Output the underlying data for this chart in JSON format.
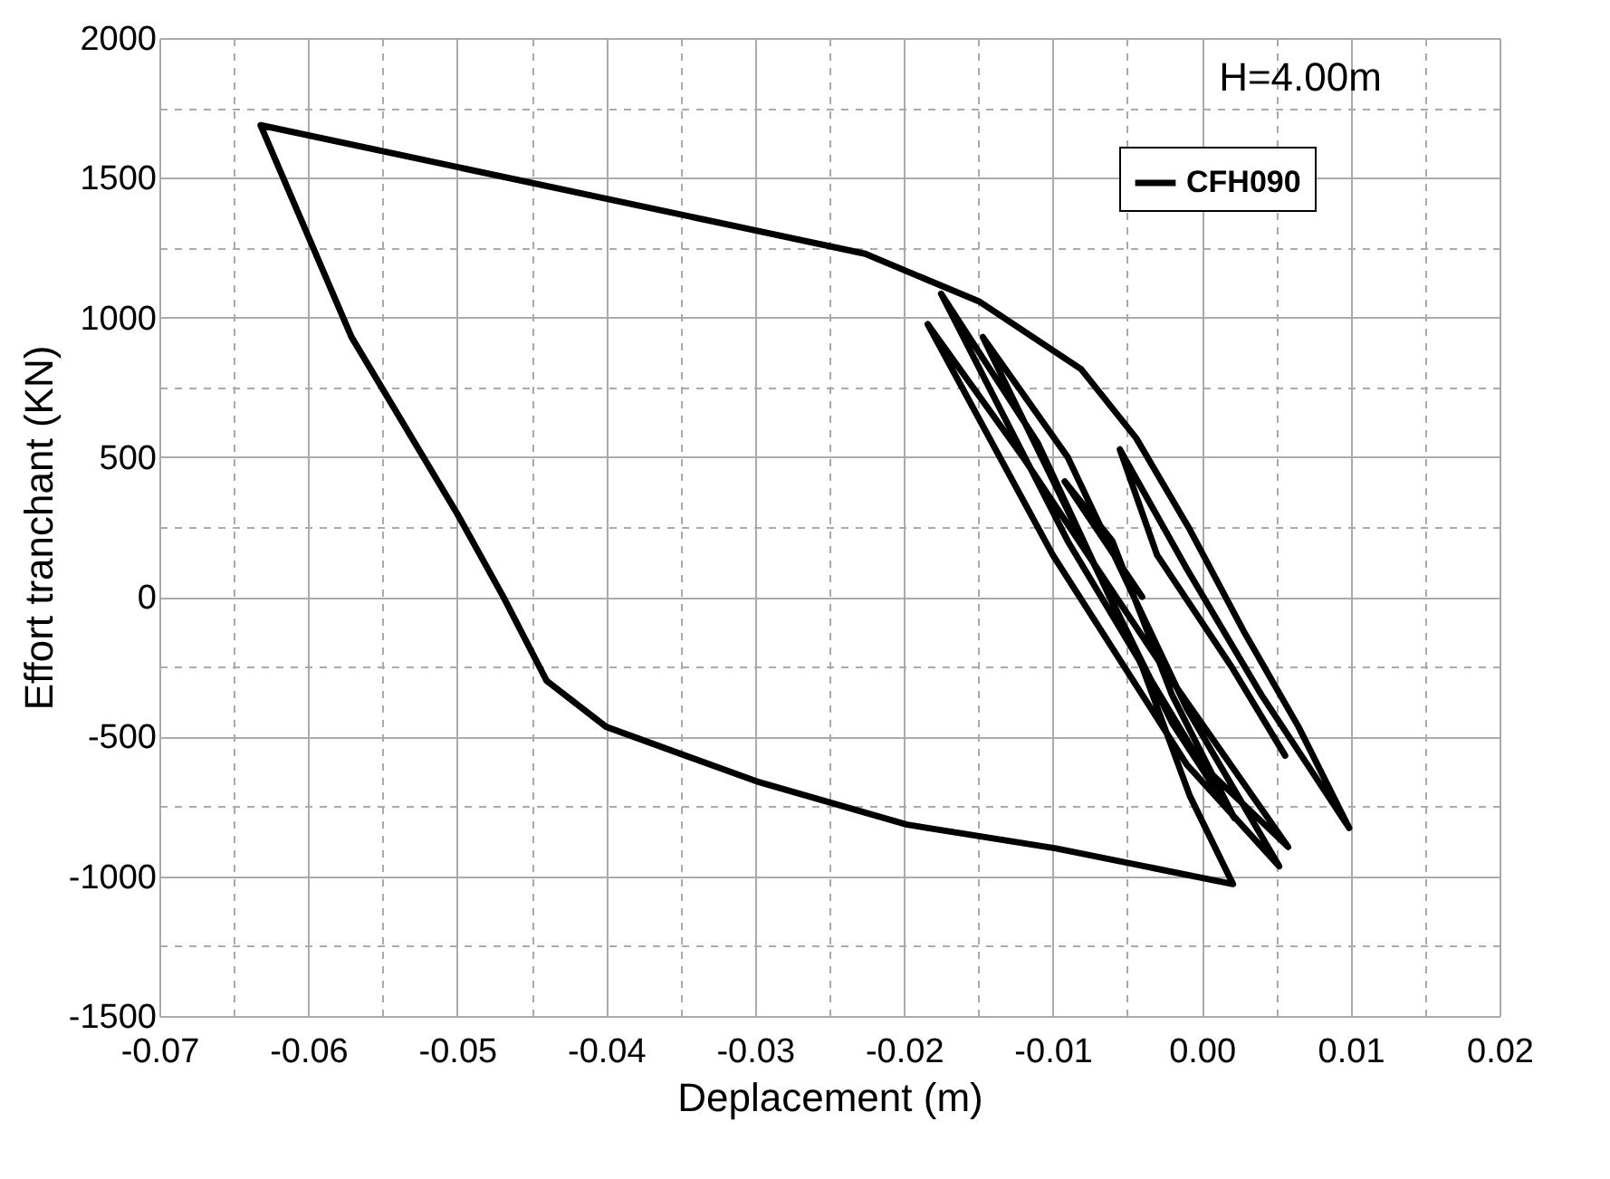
{
  "chart_data": {
    "type": "line",
    "xlabel": "Deplacement (m)",
    "ylabel": "Effort tranchant (KN)",
    "annotations": [
      "H=4.00m"
    ],
    "x": [
      -0.004,
      -0.0092,
      -0.006,
      -0.002,
      0.0022,
      -0.002,
      -0.008,
      -0.0147,
      -0.009,
      -0.001,
      0.0052,
      -0.001,
      -0.01,
      -0.0184,
      -0.012,
      -0.002,
      0.0058,
      0.0,
      -0.009,
      -0.0175,
      -0.011,
      -0.004,
      -0.0008,
      0.0021,
      -0.0098,
      -0.0198,
      -0.0299,
      -0.04,
      -0.044,
      -0.0469,
      -0.05,
      -0.0571,
      -0.0632,
      -0.0226,
      -0.0149,
      -0.0081,
      -0.0044,
      -0.0008,
      0.0028,
      0.0065,
      0.0099,
      0.004,
      -0.001,
      -0.0055,
      -0.003,
      0.002,
      0.0056
    ],
    "series": [
      {
        "name": "CFH090",
        "color": "#000000",
        "values": [
          0,
          413,
          200,
          -350,
          -792,
          -450,
          200,
          930,
          500,
          -400,
          -964,
          -600,
          150,
          976,
          500,
          -300,
          -895,
          -600,
          200,
          1085,
          550,
          -250,
          -712,
          -1028,
          -900,
          -815,
          -660,
          -465,
          -300,
          0,
          298,
          930,
          1688,
          1228,
          1056,
          815,
          568,
          241,
          -121,
          -465,
          -827,
          -350,
          100,
          528,
          150,
          -250,
          -568
        ]
      }
    ],
    "xlim": [
      -0.07,
      0.02
    ],
    "xticks": [
      -0.07,
      {
        "value": -0.065,
        "label": null
      },
      -0.06,
      {
        "value": -0.055,
        "label": null
      },
      -0.05,
      {
        "value": -0.045,
        "label": null
      },
      -0.04,
      {
        "value": -0.035,
        "label": null
      },
      -0.03,
      {
        "value": -0.025,
        "label": null
      },
      -0.02,
      {
        "value": -0.015,
        "label": null
      },
      -0.01,
      {
        "value": -0.005,
        "label": null
      },
      {
        "value": 0,
        "label": "0.00"
      },
      {
        "value": 0.005,
        "label": null
      },
      0.01,
      {
        "value": 0.015,
        "label": null
      },
      0.02
    ],
    "ylim": [
      -1500,
      2000
    ],
    "yticks": [
      -1500,
      {
        "value": -1250,
        "label": null
      },
      -1000,
      {
        "value": -750,
        "label": null
      },
      -500,
      {
        "value": -250,
        "label": null
      },
      0,
      {
        "value": 250,
        "label": null
      },
      500,
      {
        "value": 750,
        "label": null
      },
      1000,
      {
        "value": 1250,
        "label": null
      },
      1500,
      {
        "value": 1750,
        "label": null
      },
      2000
    ],
    "grid": true,
    "legend": "top right",
    "line_style": "solid",
    "marker": "none"
  }
}
